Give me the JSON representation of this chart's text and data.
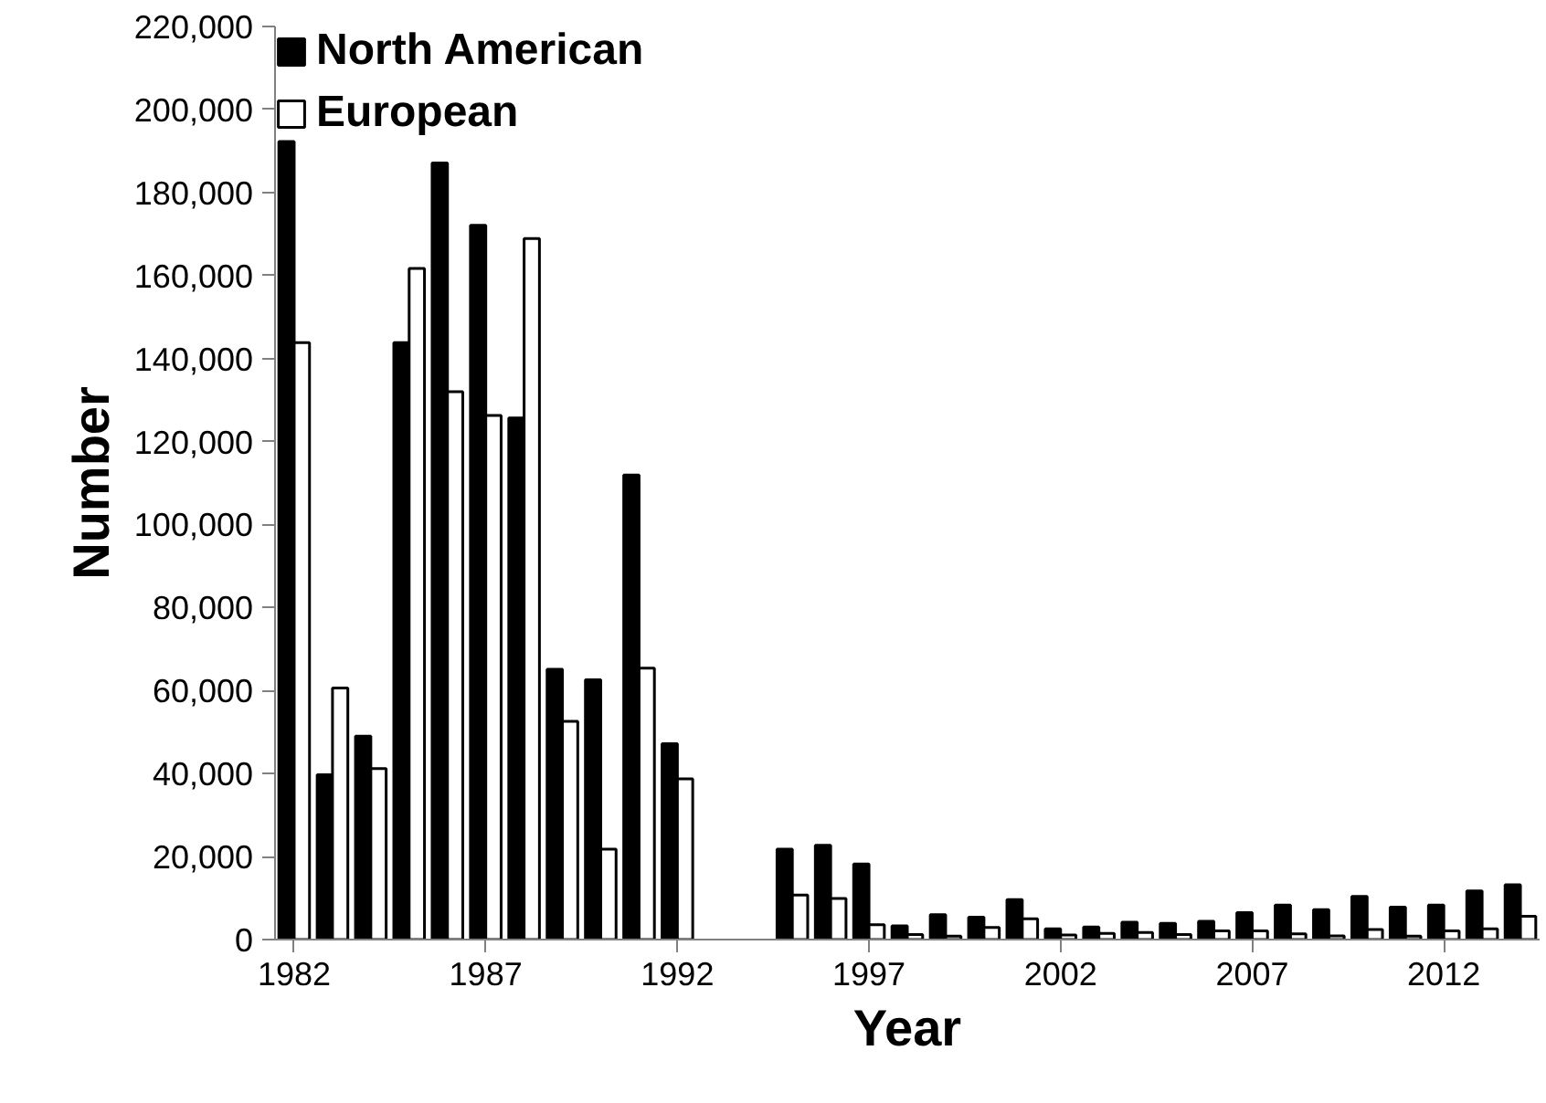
{
  "chart_data": {
    "type": "bar",
    "xlabel": "Year",
    "ylabel": "Number",
    "x": [
      1982,
      1983,
      1984,
      1985,
      1986,
      1987,
      1988,
      1989,
      1990,
      1991,
      1992,
      1993,
      1994,
      1995,
      1996,
      1997,
      1998,
      1999,
      2000,
      2001,
      2002,
      2003,
      2004,
      2005,
      2006,
      2007,
      2008,
      2009,
      2010,
      2011,
      2012,
      2013,
      2014
    ],
    "series": [
      {
        "name": "North American",
        "color": "#000000",
        "values": [
          192300,
          39700,
          49000,
          143800,
          187100,
          172100,
          125700,
          65100,
          62600,
          111900,
          47200,
          null,
          null,
          21800,
          22700,
          18200,
          3300,
          6000,
          5400,
          9600,
          2600,
          3000,
          4200,
          3900,
          4400,
          6500,
          8300,
          7200,
          10400,
          7800,
          8300,
          11700,
          13200
        ]
      },
      {
        "name": "European",
        "color": "#ffffff",
        "values": [
          143800,
          60600,
          41200,
          161700,
          132000,
          126300,
          168900,
          52600,
          21800,
          65400,
          38700,
          null,
          null,
          10700,
          9900,
          3600,
          1200,
          800,
          2900,
          5000,
          1100,
          1500,
          1700,
          1200,
          2100,
          2100,
          1400,
          900,
          2400,
          800,
          2100,
          2600,
          5600
        ]
      }
    ],
    "xlim": [
      1981.5,
      2014.5
    ],
    "xticks": [
      1982,
      1987,
      1992,
      1997,
      2002,
      2007,
      2012
    ],
    "ylim": [
      0,
      220000
    ],
    "yticks": [
      {
        "value": 0,
        "label": "0"
      },
      {
        "value": 20000,
        "label": "20,000"
      },
      {
        "value": 40000,
        "label": "40,000"
      },
      {
        "value": 60000,
        "label": "60,000"
      },
      {
        "value": 80000,
        "label": "80,000"
      },
      {
        "value": 100000,
        "label": "100,000"
      },
      {
        "value": 120000,
        "label": "120,000"
      },
      {
        "value": 140000,
        "label": "140,000"
      },
      {
        "value": 160000,
        "label": "160,000"
      },
      {
        "value": 180000,
        "label": "180,000"
      },
      {
        "value": 200000,
        "label": "200,000"
      },
      {
        "value": 220000,
        "label": "220,000"
      }
    ],
    "grid": false,
    "legend": "top left"
  }
}
